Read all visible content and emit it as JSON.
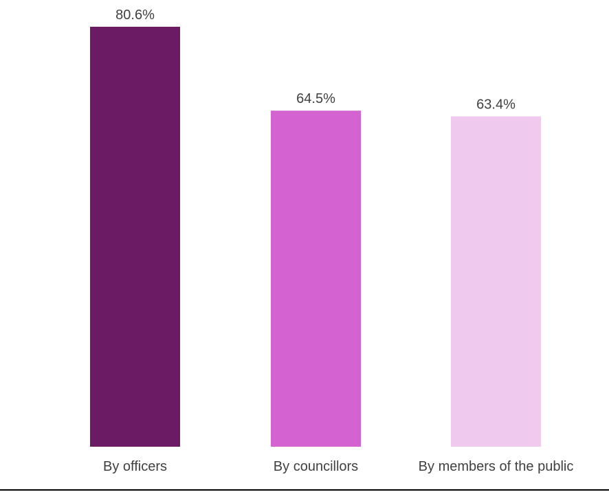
{
  "chart_data": {
    "type": "bar",
    "title": "",
    "xlabel": "",
    "ylabel": "",
    "ylim": [
      0,
      80.6
    ],
    "grid": false,
    "legend": "none",
    "categories": [
      "By officers",
      "By councillors",
      "By members of the public"
    ],
    "values": [
      80.6,
      64.5,
      63.4
    ],
    "value_labels": [
      "80.6%",
      "64.5%",
      "63.4%"
    ],
    "colors": [
      "#6b1b64",
      "#d463d1",
      "#f0c9ee"
    ],
    "baseline_color": "#000000",
    "text_color": "#404040"
  }
}
